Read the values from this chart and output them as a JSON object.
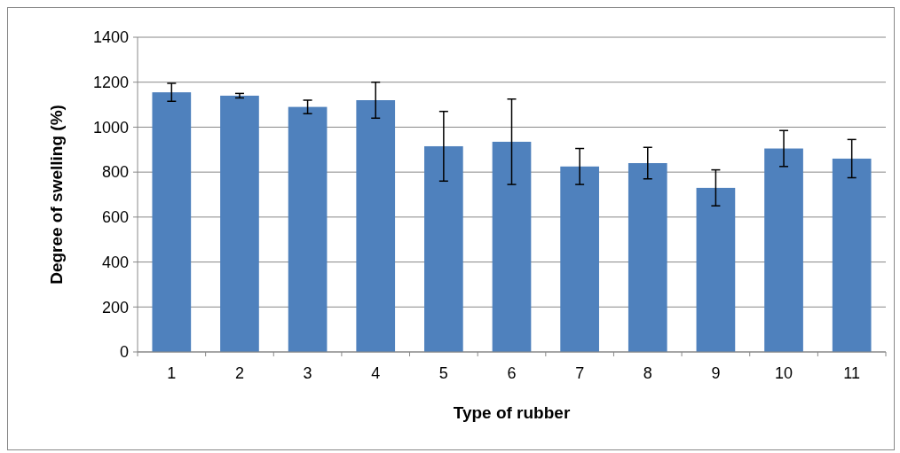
{
  "chart_data": {
    "type": "bar",
    "xlabel": "Type of rubber",
    "ylabel": "Degree of swelling (%)",
    "categories": [
      "1",
      "2",
      "3",
      "4",
      "5",
      "6",
      "7",
      "8",
      "9",
      "10",
      "11"
    ],
    "values": [
      1155,
      1140,
      1090,
      1120,
      915,
      935,
      825,
      840,
      730,
      905,
      860
    ],
    "errors": [
      40,
      10,
      30,
      80,
      155,
      190,
      80,
      70,
      80,
      80,
      85
    ],
    "color": "#4f81bd",
    "ylim": [
      0,
      1400
    ],
    "yticks": [
      0,
      200,
      400,
      600,
      800,
      1000,
      1200,
      1400
    ],
    "grid": "y"
  }
}
